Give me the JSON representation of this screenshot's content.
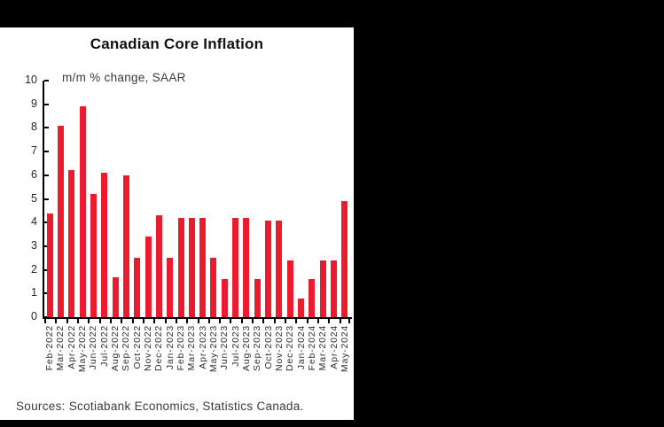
{
  "page": {
    "background": "#000000",
    "panel_background": "#ffffff"
  },
  "chart_data": {
    "type": "bar",
    "title": "Canadian Core Inflation",
    "subtitle": "m/m % change, SAAR",
    "categories": [
      "Feb-2022",
      "Mar-2022",
      "Apr-2022",
      "May-2022",
      "Jun-2022",
      "Jul-2022",
      "Aug-2022",
      "Sep-2022",
      "Oct-2022",
      "Nov-2022",
      "Dec-2022",
      "Jan-2023",
      "Feb-2023",
      "Mar-2023",
      "Apr-2023",
      "May-2023",
      "Jun-2023",
      "Jul-2023",
      "Aug-2023",
      "Sep-2023",
      "Oct-2023",
      "Nov-2023",
      "Dec-2023",
      "Jan-2024",
      "Feb-2024",
      "Mar-2024",
      "Apr-2024",
      "May-2024"
    ],
    "values": [
      4.4,
      8.1,
      6.2,
      8.9,
      5.2,
      6.1,
      1.7,
      6.0,
      2.5,
      3.4,
      4.3,
      2.5,
      4.2,
      4.2,
      4.2,
      2.5,
      1.6,
      4.2,
      4.2,
      1.6,
      4.1,
      4.1,
      2.4,
      0.8,
      1.6,
      2.4,
      2.4,
      4.9
    ],
    "xlabel": "",
    "ylabel": "",
    "ylim": [
      0,
      10
    ],
    "ytick_step": 1,
    "grid": false,
    "legend_position": "none",
    "bar_color": "#ec1b2d",
    "axis_color": "#000000",
    "source_note": "Sources: Scotiabank Economics, Statistics Canada."
  }
}
